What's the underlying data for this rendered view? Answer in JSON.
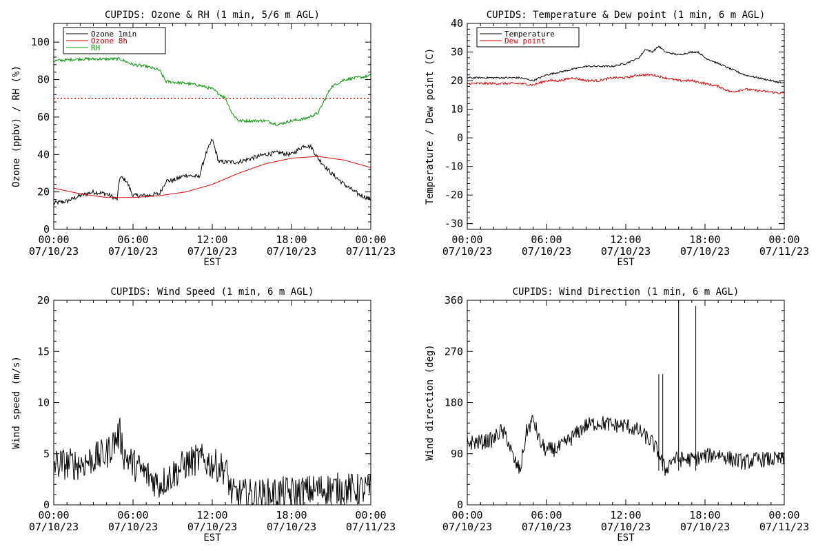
{
  "chart_data": [
    {
      "type": "line",
      "title": "CUPIDS: Ozone & RH (1 min, 5/6 m AGL)",
      "ylabel": "Ozone (ppbv) / RH (%)",
      "xlabel": "EST",
      "ylim": [
        0,
        110
      ],
      "yticks": [
        0,
        20,
        40,
        60,
        80,
        100
      ],
      "xticks": [
        {
          "t": "00:00",
          "d": "07/10/23"
        },
        {
          "t": "06:00",
          "d": "07/10/23"
        },
        {
          "t": "12:00",
          "d": "07/10/23"
        },
        {
          "t": "18:00",
          "d": "07/10/23"
        },
        {
          "t": "00:00",
          "d": "07/11/23"
        }
      ],
      "legend": "top-left",
      "reference_line": {
        "y": 70,
        "color": "#e00000",
        "style": "dotted"
      },
      "series": [
        {
          "name": "Ozone 1min",
          "color": "#000000",
          "noise": 1.2,
          "x": [
            0,
            1,
            2,
            3,
            4,
            4.8,
            5,
            5.5,
            6,
            7,
            8,
            8.5,
            9,
            10,
            11,
            11.5,
            12,
            12.5,
            13,
            14,
            15,
            16,
            17,
            18,
            19,
            19.5,
            20,
            21,
            22,
            23,
            24
          ],
          "y": [
            14,
            15,
            18,
            20,
            19,
            16,
            28,
            26,
            18,
            18,
            19,
            26,
            26,
            29,
            28,
            40,
            48,
            36,
            36,
            36,
            38,
            40,
            41,
            40,
            45,
            44,
            38,
            30,
            24,
            19,
            16
          ]
        },
        {
          "name": "Ozone 8h",
          "color": "#e00000",
          "noise": 0,
          "x": [
            0,
            2,
            4,
            6,
            8,
            10,
            12,
            14,
            16,
            18,
            20,
            22,
            24
          ],
          "y": [
            22,
            19,
            17,
            17,
            18,
            20,
            24,
            30,
            35,
            38,
            39,
            37,
            33
          ]
        },
        {
          "name": "RH",
          "color": "#009900",
          "noise": 0.8,
          "x": [
            0,
            2,
            4,
            5,
            6,
            7,
            8,
            8.5,
            10,
            11,
            12,
            13,
            13.5,
            14,
            15,
            16,
            17,
            18,
            19,
            20,
            21,
            22,
            23,
            24
          ],
          "y": [
            90,
            91,
            91,
            91,
            88,
            87,
            85,
            79,
            78,
            77,
            75,
            70,
            62,
            58,
            58,
            58,
            56,
            58,
            59,
            62,
            76,
            80,
            81,
            82
          ]
        }
      ]
    },
    {
      "type": "line",
      "title": "CUPIDS: Temperature & Dew point (1 min, 6 m AGL)",
      "ylabel": "Temperature / Dew point (C)",
      "xlabel": "EST",
      "ylim": [
        -32,
        40
      ],
      "yticks": [
        -30,
        -20,
        -10,
        0,
        10,
        20,
        30,
        40
      ],
      "xticks": [
        {
          "t": "00:00",
          "d": "07/10/23"
        },
        {
          "t": "06:00",
          "d": "07/10/23"
        },
        {
          "t": "12:00",
          "d": "07/10/23"
        },
        {
          "t": "18:00",
          "d": "07/10/23"
        },
        {
          "t": "00:00",
          "d": "07/11/23"
        }
      ],
      "legend": "top-left",
      "series": [
        {
          "name": "Temperature",
          "color": "#000000",
          "noise": 0.3,
          "x": [
            0,
            2,
            4,
            5,
            6,
            7,
            8,
            9,
            10,
            11,
            12,
            13,
            13.5,
            14,
            14.5,
            15,
            16,
            17,
            17.5,
            18,
            19,
            20,
            21,
            22,
            23,
            24
          ],
          "y": [
            21,
            21,
            21,
            20,
            22,
            23,
            24,
            25,
            25,
            25,
            26,
            28,
            31,
            30,
            32,
            30,
            29,
            30,
            30,
            28,
            26,
            24,
            22,
            21,
            20,
            19
          ]
        },
        {
          "name": "Dew point",
          "color": "#e00000",
          "noise": 0.4,
          "x": [
            0,
            2,
            4,
            5,
            6,
            7,
            8,
            9,
            10,
            11,
            12,
            13,
            14,
            15,
            16,
            17,
            18,
            19,
            20,
            21,
            22,
            23,
            24
          ],
          "y": [
            19,
            19,
            19,
            18.5,
            20,
            20,
            21,
            20,
            20,
            21,
            21,
            22,
            22,
            21,
            20,
            20,
            19,
            18,
            16,
            17,
            16.5,
            16,
            15.5
          ]
        }
      ]
    },
    {
      "type": "line",
      "title": "CUPIDS: Wind Speed (1 min, 6 m AGL)",
      "ylabel": "Wind speed (m/s)",
      "xlabel": "EST",
      "ylim": [
        0,
        20
      ],
      "yticks": [
        0,
        5,
        10,
        15,
        20
      ],
      "xticks": [
        {
          "t": "00:00",
          "d": "07/10/23"
        },
        {
          "t": "06:00",
          "d": "07/10/23"
        },
        {
          "t": "12:00",
          "d": "07/10/23"
        },
        {
          "t": "18:00",
          "d": "07/10/23"
        },
        {
          "t": "00:00",
          "d": "07/11/23"
        }
      ],
      "series": [
        {
          "name": "",
          "color": "#000000",
          "noise": 1.6,
          "x": [
            0,
            1,
            2,
            3,
            4,
            4.5,
            5,
            5.3,
            6,
            7,
            8,
            9,
            10,
            11,
            12,
            13,
            13.5,
            14,
            15,
            16,
            17,
            18,
            19,
            20,
            21,
            22,
            23,
            24
          ],
          "y": [
            4,
            4,
            4,
            4.5,
            5,
            6,
            7,
            5,
            4,
            3,
            2,
            3,
            4,
            4.5,
            4,
            3.5,
            1,
            1,
            1,
            1,
            1.2,
            1.2,
            1.3,
            1.5,
            1.6,
            1.6,
            1.5,
            1.5
          ]
        }
      ]
    },
    {
      "type": "line",
      "title": "CUPIDS: Wind Direction (1 min, 6 m AGL)",
      "ylabel": "Wind direction (deg)",
      "xlabel": "EST",
      "ylim": [
        0,
        360
      ],
      "yticks": [
        0,
        90,
        180,
        270,
        360
      ],
      "xticks": [
        {
          "t": "00:00",
          "d": "07/10/23"
        },
        {
          "t": "06:00",
          "d": "07/10/23"
        },
        {
          "t": "12:00",
          "d": "07/10/23"
        },
        {
          "t": "18:00",
          "d": "07/10/23"
        },
        {
          "t": "00:00",
          "d": "07/11/23"
        }
      ],
      "series": [
        {
          "name": "",
          "color": "#000000",
          "noise": 14,
          "x": [
            0,
            1,
            2,
            2.5,
            3,
            3.5,
            4,
            4.5,
            5,
            5.5,
            6,
            7,
            8,
            9,
            10,
            11,
            12,
            13,
            14,
            14.5,
            15,
            15.5,
            16,
            17,
            18,
            19,
            20,
            21,
            22,
            23,
            24
          ],
          "y": [
            110,
            110,
            115,
            130,
            120,
            80,
            60,
            130,
            150,
            110,
            95,
            100,
            120,
            140,
            145,
            140,
            140,
            130,
            110,
            90,
            60,
            80,
            80,
            80,
            85,
            90,
            80,
            75,
            80,
            80,
            80
          ]
        }
      ],
      "spikes": [
        {
          "x": 14.5,
          "y": 230
        },
        {
          "x": 14.8,
          "y": 230
        },
        {
          "x": 16.0,
          "y": 360
        },
        {
          "x": 17.3,
          "y": 350
        }
      ]
    }
  ]
}
